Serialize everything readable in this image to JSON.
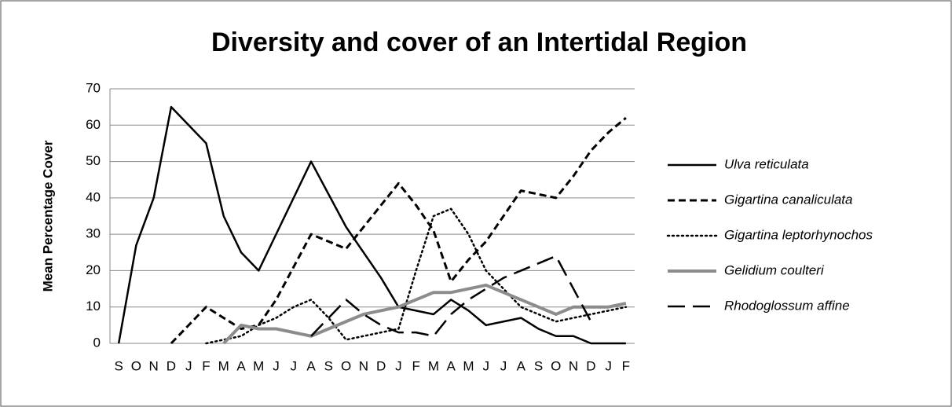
{
  "chart_data": {
    "type": "line",
    "title": "Diversity and cover of an Intertidal Region",
    "y_label": "Mean Percentage Cover",
    "categories": [
      "S",
      "O",
      "N",
      "D",
      "J",
      "F",
      "M",
      "A",
      "M",
      "J",
      "J",
      "A",
      "S",
      "O",
      "N",
      "D",
      "J",
      "F",
      "M",
      "A",
      "M",
      "J",
      "J",
      "A",
      "S",
      "O",
      "N",
      "D",
      "J",
      "F"
    ],
    "ylim": [
      0,
      70
    ],
    "yticks": [
      0,
      10,
      20,
      30,
      40,
      50,
      60,
      70
    ],
    "grid": true,
    "legend": "right",
    "series": [
      {
        "name": "Ulva reticulata",
        "color": "#000000",
        "style": "solid",
        "values": [
          0,
          27,
          40,
          65,
          60,
          55,
          35,
          25,
          20,
          30,
          40,
          50,
          41,
          32,
          25,
          18,
          10,
          9,
          8,
          12,
          9,
          5,
          6,
          7,
          4,
          2,
          2,
          0,
          0,
          0
        ]
      },
      {
        "name": "Gigartina canaliculata",
        "color": "#000000",
        "style": "dash",
        "values": [
          null,
          null,
          null,
          0,
          5,
          10,
          7,
          4,
          5,
          12,
          21,
          30,
          28,
          26,
          32,
          38,
          44,
          38,
          31,
          17,
          23,
          28,
          35,
          42,
          41,
          40,
          46,
          53,
          58,
          62
        ]
      },
      {
        "name": "Gigartina leptorhynochos",
        "color": "#000000",
        "style": "dot",
        "values": [
          null,
          null,
          null,
          null,
          null,
          0,
          1,
          2,
          5,
          7,
          10,
          12,
          7,
          1,
          2,
          3,
          4,
          20,
          35,
          37,
          30,
          20,
          15,
          10,
          8,
          6,
          7,
          8,
          9,
          10
        ]
      },
      {
        "name": "Gelidium coulteri",
        "color": "#8c8c8c",
        "style": "thick",
        "values": [
          null,
          null,
          null,
          null,
          null,
          null,
          0,
          5,
          4,
          4,
          3,
          2,
          4,
          6,
          8,
          9,
          10,
          12,
          14,
          14,
          15,
          16,
          14,
          12,
          10,
          8,
          10,
          10,
          10,
          11
        ]
      },
      {
        "name": "Rhodoglossum affine",
        "color": "#000000",
        "style": "longdash",
        "values": [
          null,
          null,
          null,
          null,
          null,
          null,
          null,
          null,
          null,
          null,
          null,
          2,
          7,
          12,
          8,
          5,
          3,
          3,
          2,
          8,
          12,
          15,
          18,
          20,
          22,
          24,
          15,
          6,
          null,
          null
        ]
      }
    ]
  }
}
